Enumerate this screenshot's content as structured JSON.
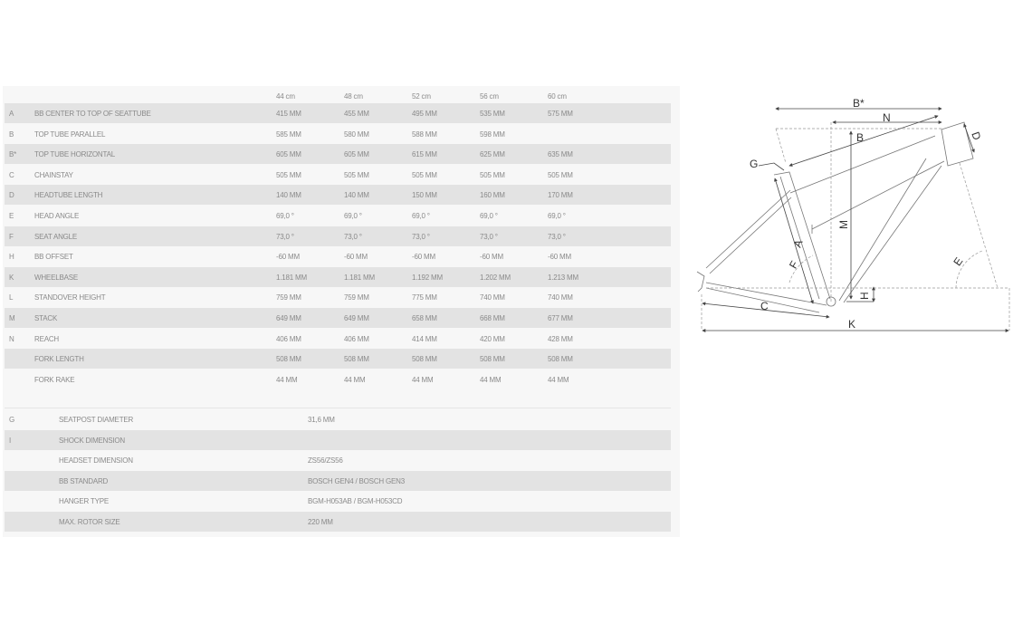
{
  "sizes": [
    "44 cm",
    "48 cm",
    "52 cm",
    "56 cm",
    "60 cm"
  ],
  "geometry": [
    {
      "code": "A",
      "name": "BB CENTER TO TOP OF SEATTUBE",
      "values": [
        "415 MM",
        "455 MM",
        "495 MM",
        "535 MM",
        "575 MM"
      ]
    },
    {
      "code": "B",
      "name": "TOP TUBE PARALLEL",
      "values": [
        "585 MM",
        "580 MM",
        "588 MM",
        "598 MM",
        ""
      ]
    },
    {
      "code": "B*",
      "name": "TOP TUBE HORIZONTAL",
      "values": [
        "605 MM",
        "605 MM",
        "615 MM",
        "625 MM",
        "635 MM"
      ]
    },
    {
      "code": "C",
      "name": "CHAINSTAY",
      "values": [
        "505 MM",
        "505 MM",
        "505 MM",
        "505 MM",
        "505 MM"
      ]
    },
    {
      "code": "D",
      "name": "HEADTUBE LENGTH",
      "values": [
        "140 MM",
        "140 MM",
        "150 MM",
        "160 MM",
        "170 MM"
      ]
    },
    {
      "code": "E",
      "name": "HEAD ANGLE",
      "values": [
        "69,0 °",
        "69,0 °",
        "69,0 °",
        "69,0 °",
        "69,0 °"
      ]
    },
    {
      "code": "F",
      "name": "SEAT ANGLE",
      "values": [
        "73,0 °",
        "73,0 °",
        "73,0 °",
        "73,0 °",
        "73,0 °"
      ]
    },
    {
      "code": "H",
      "name": "BB OFFSET",
      "values": [
        "-60 MM",
        "-60 MM",
        "-60 MM",
        "-60 MM",
        "-60 MM"
      ]
    },
    {
      "code": "K",
      "name": "WHEELBASE",
      "values": [
        "1.181 MM",
        "1.181 MM",
        "1.192 MM",
        "1.202 MM",
        "1.213 MM"
      ]
    },
    {
      "code": "L",
      "name": "STANDOVER HEIGHT",
      "values": [
        "759 MM",
        "759 MM",
        "775 MM",
        "740 MM",
        "740 MM"
      ]
    },
    {
      "code": "M",
      "name": "STACK",
      "values": [
        "649 MM",
        "649 MM",
        "658 MM",
        "668 MM",
        "677 MM"
      ]
    },
    {
      "code": "N",
      "name": "REACH",
      "values": [
        "406 MM",
        "406 MM",
        "414 MM",
        "420 MM",
        "428 MM"
      ]
    },
    {
      "code": "",
      "name": "FORK LENGTH",
      "values": [
        "508 MM",
        "508 MM",
        "508 MM",
        "508 MM",
        "508 MM"
      ]
    },
    {
      "code": "",
      "name": "FORK RAKE",
      "values": [
        "44 MM",
        "44 MM",
        "44 MM",
        "44 MM",
        "44 MM"
      ]
    }
  ],
  "specs": [
    {
      "code": "G",
      "name": "SEATPOST DIAMETER",
      "value": "31,6 MM"
    },
    {
      "code": "I",
      "name": "SHOCK DIMENSION",
      "value": ""
    },
    {
      "code": "",
      "name": "HEADSET DIMENSION",
      "value": "ZS56/ZS56"
    },
    {
      "code": "",
      "name": "BB STANDARD",
      "value": "BOSCH GEN4 / BOSCH GEN3"
    },
    {
      "code": "",
      "name": "HANGER TYPE",
      "value": "BGM-H053AB / BGM-H053CD"
    },
    {
      "code": "",
      "name": "MAX. ROTOR SIZE",
      "value": "220 MM"
    }
  ],
  "diagram": {
    "labels": {
      "bstar": "B*",
      "n": "N",
      "b": "B",
      "d": "D",
      "g": "G",
      "m": "M",
      "a": "A",
      "f": "F",
      "e": "E",
      "h": "H",
      "c": "C",
      "k": "K"
    }
  }
}
